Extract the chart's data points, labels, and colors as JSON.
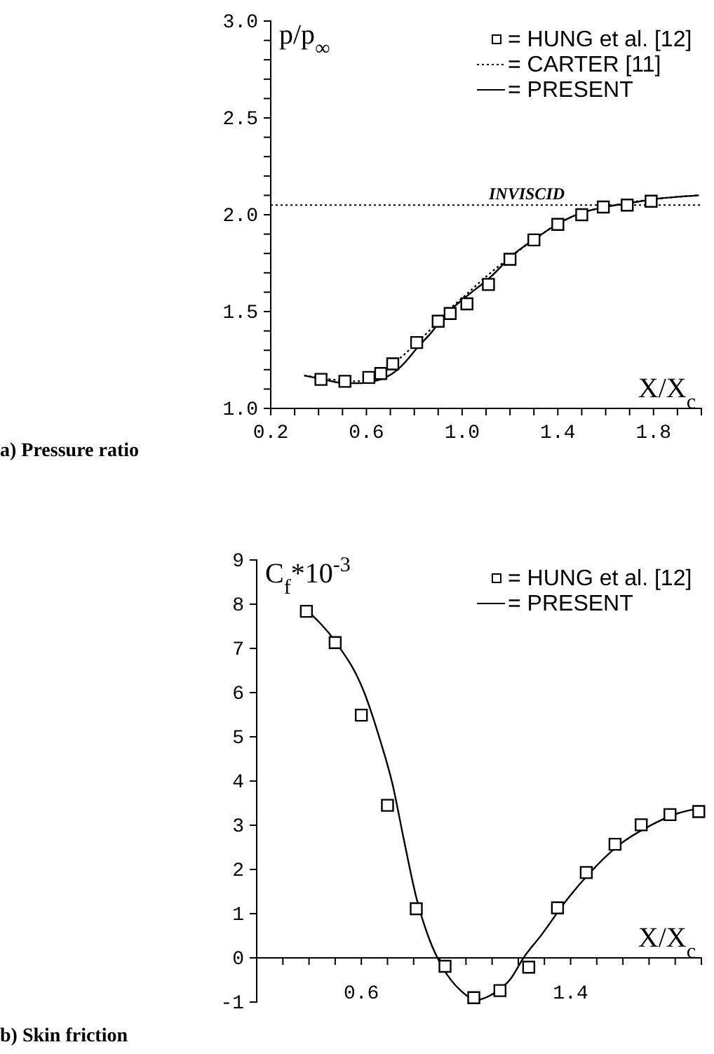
{
  "chart_data": [
    {
      "type": "line",
      "ylabel": "p/p$_{∞}$",
      "xlabel": "X/X$_{c}$",
      "annotations": [
        "a) Pressure ratio"
      ],
      "xlim": [
        0.2,
        2.0
      ],
      "xticks": [
        {
          "value": 0.2,
          "label": "0.2"
        },
        {
          "value": 0.3,
          "label": null
        },
        {
          "value": 0.4,
          "label": null
        },
        {
          "value": 0.5,
          "label": null
        },
        {
          "value": 0.6,
          "label": "0.6"
        },
        {
          "value": 0.7,
          "label": null
        },
        {
          "value": 0.8,
          "label": null
        },
        {
          "value": 0.9,
          "label": null
        },
        {
          "value": 1.0,
          "label": "1.0"
        },
        {
          "value": 1.1,
          "label": null
        },
        {
          "value": 1.2,
          "label": null
        },
        {
          "value": 1.3,
          "label": null
        },
        {
          "value": 1.4,
          "label": "1.4"
        },
        {
          "value": 1.5,
          "label": null
        },
        {
          "value": 1.6,
          "label": null
        },
        {
          "value": 1.7,
          "label": null
        },
        {
          "value": 1.8,
          "label": "1.8"
        },
        {
          "value": 1.9,
          "label": null
        },
        {
          "value": 2.0,
          "label": null
        }
      ],
      "ylim": [
        1.0,
        3.0
      ],
      "yticks": [
        {
          "value": 1.0,
          "label": "1.0"
        },
        {
          "value": 1.1,
          "label": null
        },
        {
          "value": 1.2,
          "label": null
        },
        {
          "value": 1.3,
          "label": null
        },
        {
          "value": 1.4,
          "label": null
        },
        {
          "value": 1.5,
          "label": "1.5"
        },
        {
          "value": 1.6,
          "label": null
        },
        {
          "value": 1.7,
          "label": null
        },
        {
          "value": 1.8,
          "label": null
        },
        {
          "value": 1.9,
          "label": null
        },
        {
          "value": 2.0,
          "label": "2.0"
        },
        {
          "value": 2.1,
          "label": null
        },
        {
          "value": 2.2,
          "label": null
        },
        {
          "value": 2.3,
          "label": null
        },
        {
          "value": 2.4,
          "label": null
        },
        {
          "value": 2.5,
          "label": "2.5"
        },
        {
          "value": 2.6,
          "label": null
        },
        {
          "value": 2.7,
          "label": null
        },
        {
          "value": 2.8,
          "label": null
        },
        {
          "value": 2.9,
          "label": null
        },
        {
          "value": 3.0,
          "label": "3.0"
        }
      ],
      "legend": "top right",
      "ref_lines": [
        {
          "axis": "y",
          "value": 2.05,
          "label": "INVISCID",
          "line_style": "dotted"
        }
      ],
      "series": [
        {
          "name": "= HUNG et al. [12]",
          "type": "scatter",
          "marker": "square",
          "color": "#000000",
          "x": [
            0.41,
            0.51,
            0.61,
            0.66,
            0.71,
            0.81,
            0.9,
            0.95,
            1.02,
            1.11,
            1.2,
            1.3,
            1.4,
            1.5,
            1.59,
            1.69,
            1.79
          ],
          "values": [
            1.15,
            1.14,
            1.16,
            1.18,
            1.23,
            1.34,
            1.45,
            1.49,
            1.54,
            1.64,
            1.77,
            1.87,
            1.95,
            2.0,
            2.04,
            2.05,
            2.07
          ]
        },
        {
          "name": "= CARTER [11]",
          "type": "line",
          "line_style": "dotted",
          "color": "#000000",
          "x": [
            0.34,
            0.45,
            0.55,
            0.61,
            0.66,
            0.71,
            0.76,
            0.81,
            0.87,
            0.92,
            1.01,
            1.1,
            1.2,
            1.31,
            1.41,
            1.5,
            1.6,
            1.8,
            1.99
          ],
          "values": [
            1.17,
            1.15,
            1.14,
            1.15,
            1.18,
            1.23,
            1.28,
            1.34,
            1.41,
            1.48,
            1.58,
            1.68,
            1.78,
            1.88,
            1.96,
            2.01,
            2.04,
            2.08,
            2.1
          ]
        },
        {
          "name": "= PRESENT",
          "type": "line",
          "line_style": "solid",
          "color": "#000000",
          "x": [
            0.34,
            0.42,
            0.51,
            0.58,
            0.63,
            0.68,
            0.73,
            0.77,
            0.81,
            0.87,
            0.92,
            1.01,
            1.12,
            1.21,
            1.31,
            1.41,
            1.5,
            1.6,
            1.7,
            1.8,
            1.99
          ],
          "values": [
            1.17,
            1.15,
            1.13,
            1.13,
            1.14,
            1.16,
            1.2,
            1.25,
            1.31,
            1.39,
            1.47,
            1.57,
            1.68,
            1.79,
            1.88,
            1.96,
            2.01,
            2.04,
            2.06,
            2.08,
            2.1
          ]
        }
      ]
    },
    {
      "type": "line",
      "ylabel": "C$_{f}$*10$^{-3}$",
      "xlabel": "X/X$_{c}$",
      "annotations": [
        "b) Skin friction"
      ],
      "xlim": [
        0.2,
        1.9
      ],
      "xticks": [
        {
          "value": 0.3,
          "label": null
        },
        {
          "value": 0.4,
          "label": null
        },
        {
          "value": 0.5,
          "label": null
        },
        {
          "value": 0.6,
          "label": "0.6"
        },
        {
          "value": 0.7,
          "label": null
        },
        {
          "value": 0.8,
          "label": null
        },
        {
          "value": 0.9,
          "label": null
        },
        {
          "value": 1.0,
          "label": null
        },
        {
          "value": 1.1,
          "label": null
        },
        {
          "value": 1.2,
          "label": null
        },
        {
          "value": 1.3,
          "label": null
        },
        {
          "value": 1.4,
          "label": "1.4"
        },
        {
          "value": 1.5,
          "label": null
        },
        {
          "value": 1.6,
          "label": null
        },
        {
          "value": 1.7,
          "label": null
        },
        {
          "value": 1.8,
          "label": null
        },
        {
          "value": 1.9,
          "label": null
        }
      ],
      "ylim": [
        -1,
        9
      ],
      "yticks": [
        -1,
        0,
        1,
        2,
        3,
        4,
        5,
        6,
        7,
        8,
        9
      ],
      "legend": "top right",
      "series": [
        {
          "name": "= HUNG et al. [12]",
          "type": "scatter",
          "marker": "square",
          "color": "#000000",
          "x": [
            0.39,
            0.5,
            0.6,
            0.7,
            0.81,
            0.92,
            1.03,
            1.13,
            1.24,
            1.35,
            1.46,
            1.57,
            1.67,
            1.78,
            1.89
          ],
          "values": [
            7.84,
            7.13,
            5.49,
            3.45,
            1.11,
            -0.19,
            -0.9,
            -0.74,
            -0.21,
            1.13,
            1.93,
            2.57,
            3.01,
            3.24,
            3.31
          ]
        },
        {
          "name": "= PRESENT",
          "type": "line",
          "line_style": "solid",
          "color": "#000000",
          "x": [
            0.39,
            0.5,
            0.61,
            0.67,
            0.72,
            0.76,
            0.81,
            0.86,
            0.91,
            0.98,
            1.04,
            1.11,
            1.17,
            1.22,
            1.29,
            1.38,
            1.47,
            1.58,
            1.71,
            1.81,
            1.89
          ],
          "values": [
            7.87,
            7.16,
            6.02,
            4.96,
            3.91,
            2.75,
            1.37,
            0.42,
            -0.21,
            -0.74,
            -0.95,
            -0.79,
            -0.48,
            0,
            0.53,
            1.27,
            1.9,
            2.53,
            3.01,
            3.27,
            3.38
          ]
        }
      ]
    }
  ]
}
